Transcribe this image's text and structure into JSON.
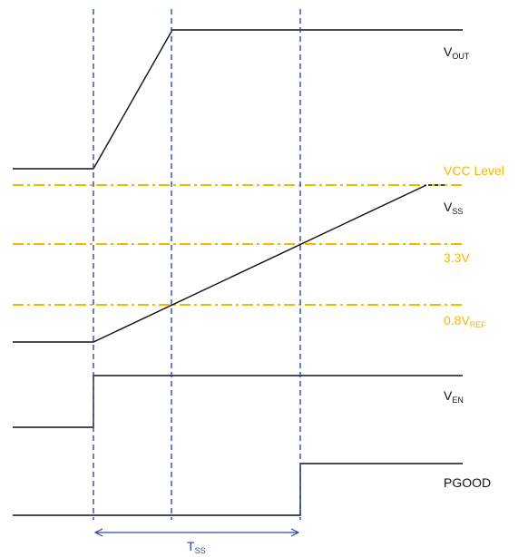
{
  "signals": {
    "vout": {
      "main": "V",
      "sub": "OUT"
    },
    "vss": {
      "main": "V",
      "sub": "SS"
    },
    "ven": {
      "main": "V",
      "sub": "EN"
    },
    "pgood": {
      "main": "PGOOD"
    }
  },
  "levels": {
    "vcc": {
      "main": "VCC Level"
    },
    "v33": {
      "main": "3.3V"
    },
    "vref": {
      "main": "0.8V",
      "sub": "REF"
    }
  },
  "timing": {
    "tss": {
      "main": "T",
      "sub": "SS"
    }
  },
  "colors": {
    "signal": "#111111",
    "level": "#f5b800",
    "marker": "#2b4aa0",
    "level_text": "#f5b800",
    "marker_text": "#2b4aa0"
  }
}
